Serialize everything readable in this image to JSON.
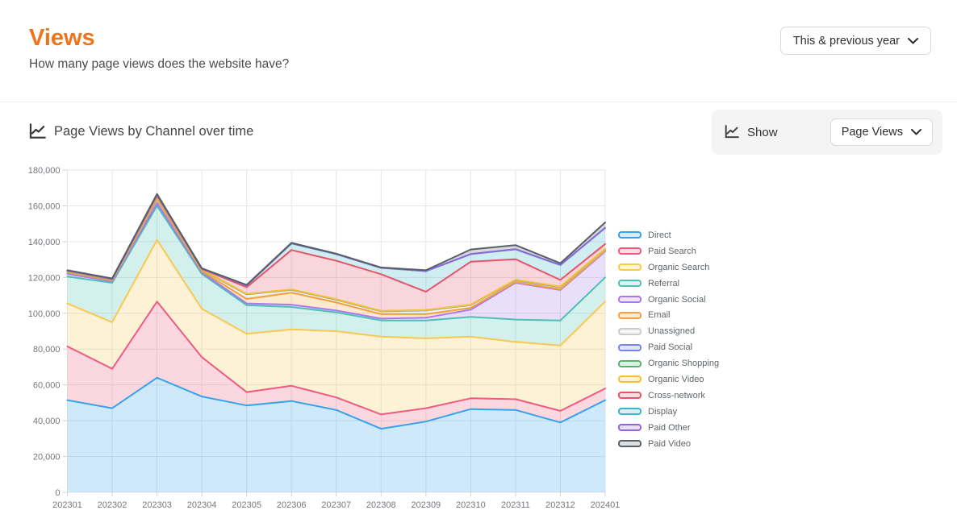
{
  "header": {
    "title": "Views",
    "subtitle": "How many page views does the website have?",
    "period_selector_label": "This & previous year"
  },
  "section": {
    "title": "Page Views by Channel over time",
    "show_label": "Show",
    "metric_selector_label": "Page Views"
  },
  "colors": {
    "accent_orange": "#EE751B",
    "panel_bg": "#f4f4f5",
    "grid": "#e6e6e6"
  },
  "icons": {
    "section_icon": "chart-line-icon",
    "show_icon": "chart-line-icon",
    "dropdown_icon": "chevron-down-icon"
  },
  "chart_data": {
    "type": "area",
    "stacked": true,
    "title": "Page Views by Channel over time",
    "xlabel": "",
    "ylabel": "",
    "ylim": [
      0,
      180000
    ],
    "ytick_step": 20000,
    "grid": true,
    "legend_position": "right",
    "categories": [
      "202301",
      "202302",
      "202303",
      "202304",
      "202305",
      "202306",
      "202307",
      "202308",
      "202309",
      "202310",
      "202311",
      "202312",
      "202401"
    ],
    "series": [
      {
        "name": "Direct",
        "color": "#36A2EB",
        "values": [
          51500,
          47000,
          64000,
          53500,
          48500,
          51000,
          46000,
          35500,
          39500,
          46500,
          46000,
          39000,
          51500
        ]
      },
      {
        "name": "Paid Search",
        "color": "#EF5B7F",
        "values": [
          30000,
          22000,
          42500,
          22000,
          7500,
          8500,
          7000,
          8000,
          7500,
          6000,
          6000,
          6500,
          6500
        ]
      },
      {
        "name": "Organic Search",
        "color": "#F8C851",
        "values": [
          24000,
          26000,
          34500,
          27000,
          32500,
          31500,
          37000,
          43500,
          39000,
          34500,
          32000,
          36500,
          48500
        ]
      },
      {
        "name": "Referral",
        "color": "#4DC0B5",
        "values": [
          15000,
          22000,
          19000,
          19500,
          16000,
          12500,
          10500,
          9000,
          10000,
          11000,
          12500,
          14000,
          13500
        ]
      },
      {
        "name": "Organic Social",
        "color": "#A878EC",
        "values": [
          1500,
          800,
          1500,
          900,
          1000,
          1300,
          1000,
          1000,
          1500,
          4000,
          20500,
          17000,
          14500
        ]
      },
      {
        "name": "Email",
        "color": "#F69D3C",
        "values": [
          800,
          500,
          2000,
          600,
          2500,
          6700,
          4500,
          2500,
          2000,
          1000,
          400,
          400,
          400
        ]
      },
      {
        "name": "Unassigned",
        "color": "#C8CACC",
        "values": [
          300,
          300,
          700,
          600,
          2500,
          1500,
          1500,
          1500,
          2000,
          1500,
          800,
          1100,
          600
        ]
      },
      {
        "name": "Paid Social",
        "color": "#7584EC",
        "values": [
          100,
          100,
          300,
          150,
          150,
          150,
          150,
          150,
          150,
          150,
          300,
          200,
          300
        ]
      },
      {
        "name": "Organic Shopping",
        "color": "#57B56B",
        "values": [
          60,
          60,
          150,
          80,
          80,
          80,
          80,
          80,
          80,
          80,
          100,
          100,
          100
        ]
      },
      {
        "name": "Organic Video",
        "color": "#F5C12E",
        "values": [
          80,
          80,
          150,
          80,
          80,
          80,
          80,
          80,
          80,
          80,
          100,
          100,
          100
        ]
      },
      {
        "name": "Cross-network",
        "color": "#E4556A",
        "values": [
          300,
          200,
          800,
          300,
          3700,
          22000,
          21500,
          20500,
          10200,
          24000,
          11500,
          3700,
          2700
        ]
      },
      {
        "name": "Display",
        "color": "#3BB5C8",
        "values": [
          200,
          200,
          600,
          200,
          1000,
          3700,
          3700,
          3500,
          11500,
          4200,
          5500,
          8300,
          9000
        ]
      },
      {
        "name": "Paid Other",
        "color": "#8F66D9",
        "values": [
          60,
          60,
          100,
          60,
          60,
          60,
          60,
          60,
          60,
          60,
          100,
          100,
          100
        ]
      },
      {
        "name": "Paid Video",
        "color": "#585F66",
        "values": [
          140,
          140,
          340,
          140,
          240,
          240,
          240,
          240,
          440,
          2540,
          2240,
          940,
          2940
        ]
      }
    ]
  }
}
